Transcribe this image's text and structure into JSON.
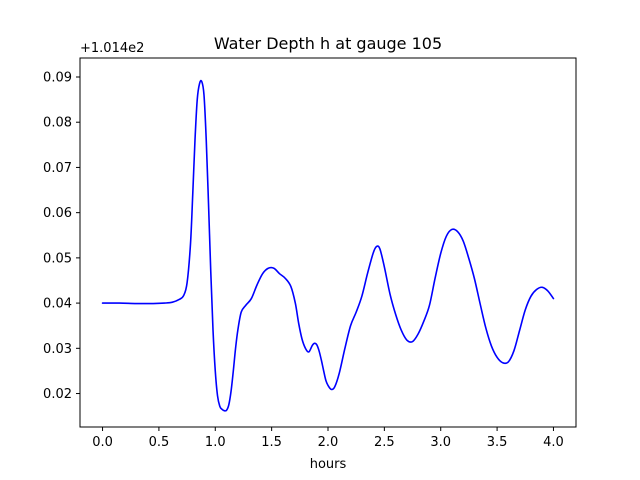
{
  "chart_data": {
    "type": "line",
    "title": "Water Depth h at gauge 105",
    "xlabel": "hours",
    "ylabel": "",
    "y_offset_label": "+1.014e2",
    "xlim": [
      -0.2,
      4.2
    ],
    "ylim": [
      0.0126,
      0.0942
    ],
    "xticks": [
      0.0,
      0.5,
      1.0,
      1.5,
      2.0,
      2.5,
      3.0,
      3.5,
      4.0
    ],
    "xtick_labels": [
      "0.0",
      "0.5",
      "1.0",
      "1.5",
      "2.0",
      "2.5",
      "3.0",
      "3.5",
      "4.0"
    ],
    "yticks": [
      0.02,
      0.03,
      0.04,
      0.05,
      0.06,
      0.07,
      0.08,
      0.09
    ],
    "ytick_labels": [
      "0.02",
      "0.03",
      "0.04",
      "0.05",
      "0.06",
      "0.07",
      "0.08",
      "0.09"
    ],
    "grid": false,
    "legend": "none",
    "series": [
      {
        "color": "#0000ff",
        "x": [
          0.0,
          0.15,
          0.3,
          0.45,
          0.55,
          0.62,
          0.68,
          0.72,
          0.75,
          0.78,
          0.8,
          0.82,
          0.84,
          0.86,
          0.88,
          0.9,
          0.92,
          0.94,
          0.96,
          0.98,
          1.0,
          1.02,
          1.04,
          1.06,
          1.08,
          1.1,
          1.12,
          1.14,
          1.16,
          1.18,
          1.2,
          1.23,
          1.27,
          1.32,
          1.37,
          1.42,
          1.47,
          1.52,
          1.57,
          1.62,
          1.67,
          1.71,
          1.74,
          1.77,
          1.8,
          1.83,
          1.86,
          1.88,
          1.9,
          1.92,
          1.94,
          1.96,
          1.98,
          2.0,
          2.03,
          2.06,
          2.1,
          2.15,
          2.2,
          2.25,
          2.3,
          2.35,
          2.4,
          2.43,
          2.46,
          2.5,
          2.55,
          2.6,
          2.65,
          2.7,
          2.75,
          2.8,
          2.85,
          2.9,
          2.95,
          3.0,
          3.05,
          3.1,
          3.15,
          3.2,
          3.25,
          3.3,
          3.35,
          3.4,
          3.45,
          3.5,
          3.55,
          3.6,
          3.65,
          3.7,
          3.75,
          3.8,
          3.85,
          3.9,
          3.95,
          4.0
        ],
        "y": [
          0.04,
          0.04,
          0.0399,
          0.0399,
          0.04,
          0.0402,
          0.0408,
          0.0417,
          0.0445,
          0.053,
          0.064,
          0.076,
          0.085,
          0.0885,
          0.089,
          0.086,
          0.076,
          0.062,
          0.047,
          0.034,
          0.025,
          0.0195,
          0.0172,
          0.0165,
          0.0162,
          0.0163,
          0.0175,
          0.0205,
          0.025,
          0.03,
          0.034,
          0.038,
          0.0395,
          0.041,
          0.044,
          0.0465,
          0.0477,
          0.0477,
          0.0465,
          0.0455,
          0.0437,
          0.04,
          0.0355,
          0.032,
          0.03,
          0.0292,
          0.0306,
          0.0311,
          0.0308,
          0.0295,
          0.0275,
          0.0252,
          0.023,
          0.0218,
          0.0209,
          0.0215,
          0.0245,
          0.03,
          0.035,
          0.038,
          0.0415,
          0.0465,
          0.051,
          0.0525,
          0.052,
          0.048,
          0.042,
          0.0375,
          0.034,
          0.0318,
          0.0315,
          0.0332,
          0.036,
          0.0395,
          0.0455,
          0.051,
          0.0548,
          0.0563,
          0.0558,
          0.0537,
          0.0498,
          0.0453,
          0.0398,
          0.0345,
          0.0305,
          0.028,
          0.0268,
          0.027,
          0.0295,
          0.034,
          0.0385,
          0.0415,
          0.043,
          0.0435,
          0.0427,
          0.041
        ]
      }
    ]
  }
}
